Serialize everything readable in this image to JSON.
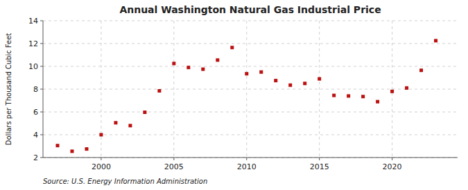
{
  "chart_data": {
    "type": "scatter",
    "title": "Annual Washington Natural Gas Industrial Price",
    "ylabel": "Dollars per Thousand Cubic Feet",
    "source": "Source: U.S. Energy Information Administration",
    "x": [
      1997,
      1998,
      1999,
      2000,
      2001,
      2002,
      2003,
      2004,
      2005,
      2006,
      2007,
      2008,
      2009,
      2010,
      2011,
      2012,
      2013,
      2014,
      2015,
      2016,
      2017,
      2018,
      2019,
      2020,
      2021,
      2022,
      2023
    ],
    "values": [
      3.05,
      2.55,
      2.75,
      4.0,
      5.05,
      4.8,
      5.97,
      7.85,
      10.25,
      9.9,
      9.75,
      10.55,
      11.65,
      9.35,
      9.5,
      8.75,
      8.35,
      8.5,
      8.9,
      7.45,
      7.4,
      7.35,
      6.9,
      7.8,
      8.1,
      9.65,
      12.25
    ],
    "color": "#bb1111",
    "marker": "square",
    "xlim": [
      1996.0,
      2024.5
    ],
    "xticks": [
      2000,
      2005,
      2010,
      2015,
      2020
    ],
    "ylim": [
      2,
      14
    ],
    "yticks": [
      2,
      4,
      6,
      8,
      10,
      12,
      14
    ],
    "grid": true
  }
}
